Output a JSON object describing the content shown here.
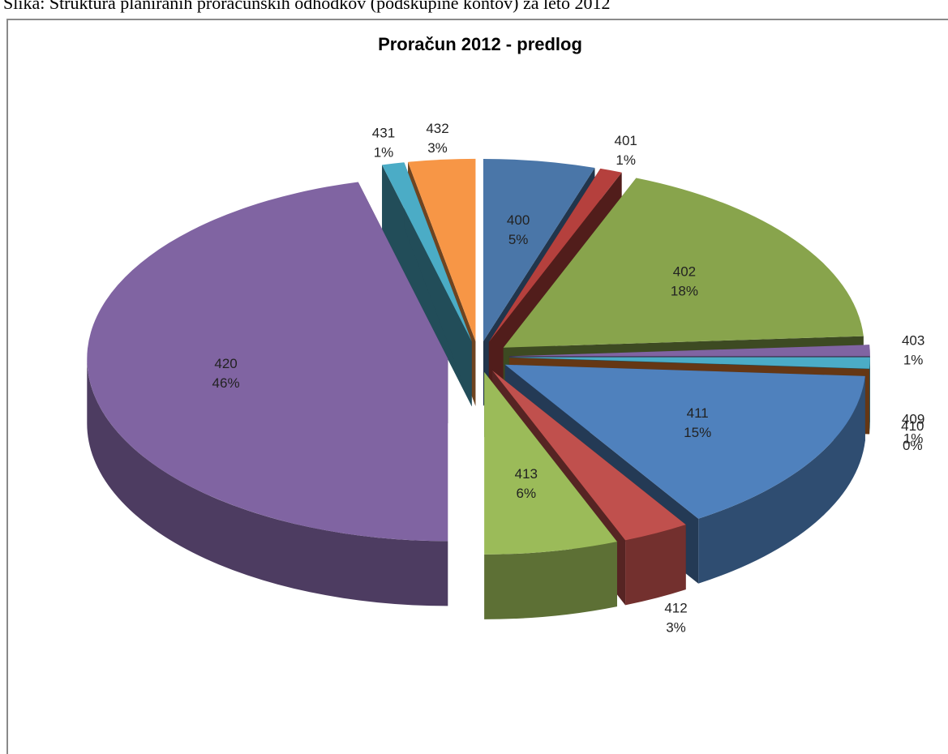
{
  "caption": "Slika: Struktura planiranih proračunskih odhodkov (podskupine kontov) za leto 2012",
  "chart_data": {
    "type": "pie",
    "title": "Proračun 2012 - predlog",
    "categories": [
      "400",
      "401",
      "402",
      "403",
      "409",
      "410",
      "411",
      "412",
      "413",
      "420",
      "431",
      "432"
    ],
    "values": [
      5,
      1,
      18,
      1,
      1,
      0,
      15,
      3,
      6,
      46,
      1,
      3
    ],
    "value_labels": [
      "5%",
      "1%",
      "18%",
      "1%",
      "1%",
      "0%",
      "15%",
      "3%",
      "6%",
      "46%",
      "1%",
      "3%"
    ],
    "colors": [
      "#4a76a8",
      "#b5403d",
      "#88a44c",
      "#8064a2",
      "#4bacc6",
      "#e07b2c",
      "#4f81bd",
      "#c0504d",
      "#9bbb59",
      "#8064a2",
      "#4bacc6",
      "#f79646"
    ]
  }
}
